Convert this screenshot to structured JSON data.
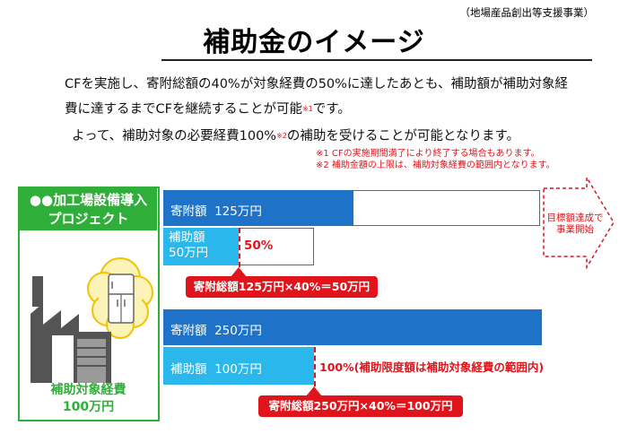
{
  "header": {
    "tag": "（地場産品創出等支援事業）",
    "title": "補助金のイメージ"
  },
  "intro": {
    "line1": "CFを実施し、寄附総額の40%が対象経費の50%に達したあとも、補助額が補助対象経",
    "line2_pre": "費に達するまでCFを継続することが可能",
    "line2_ref": "※1",
    "line2_post": "です。",
    "line3_pre": "よって、補助対象の必要経費100%",
    "line3_ref": "※2",
    "line3_post": "の補助を受けることが可能となります。"
  },
  "notes": [
    "※1  CFの実施期間満了により終了する場合もあります。",
    "※2  補助金額の上限は、補助対象経費の範囲内となります。"
  ],
  "project": {
    "title_line1": "●●加工場設備導入",
    "title_line2": "プロジェクト",
    "cost_label": "補助対象経費",
    "cost_value": "100万円"
  },
  "scenario1": {
    "donation_label": "寄附額",
    "donation_value": "125万円",
    "subsidy_label": "補助額",
    "subsidy_value": "50万円",
    "percent": "50%",
    "formula": "寄附総額125万円×40%＝50万円"
  },
  "scenario2": {
    "donation_label": "寄附額",
    "donation_value": "250万円",
    "subsidy_label": "補助額",
    "subsidy_value": "100万円",
    "percent_note": "100%(補助限度額は補助対象経費の範囲内)",
    "formula": "寄附総額250万円×40%＝100万円"
  },
  "target": {
    "line1": "目標額達成で",
    "line2": "事業開始"
  },
  "colors": {
    "green": "#2fae3a",
    "blue": "#1e73c8",
    "light_blue": "#2ab7ec",
    "red": "#e0141b"
  },
  "icons": {
    "factory": "factory-icon",
    "fridge": "refrigerator-icon"
  }
}
